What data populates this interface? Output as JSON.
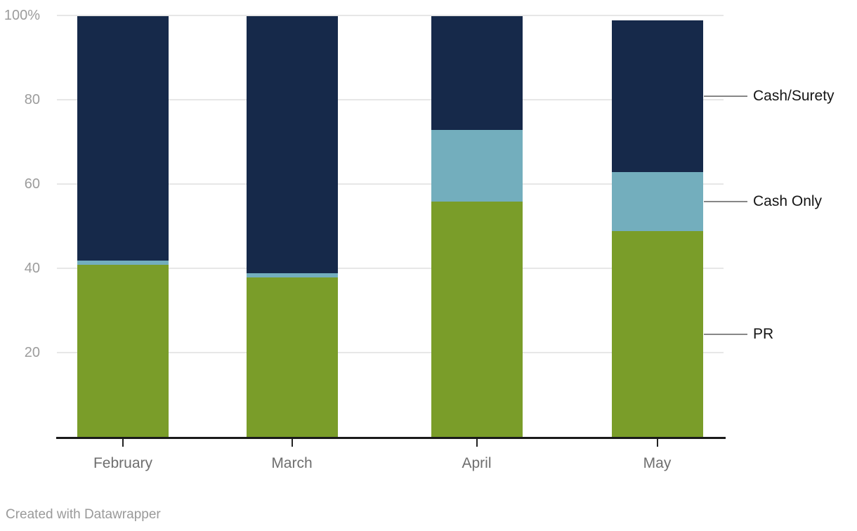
{
  "chart_data": {
    "type": "bar",
    "stacked": true,
    "orientation": "vertical",
    "unit": "%",
    "title": "",
    "categories": [
      "February",
      "March",
      "April",
      "May"
    ],
    "series": [
      {
        "name": "PR",
        "color": "#7a9d29",
        "values": [
          41,
          38,
          56,
          49
        ]
      },
      {
        "name": "Cash Only",
        "color": "#73aebd",
        "values": [
          1,
          1,
          17,
          14
        ]
      },
      {
        "name": "Cash/Surety",
        "color": "#16294a",
        "values": [
          58,
          61,
          27,
          36
        ]
      }
    ],
    "totals": [
      100,
      100,
      100,
      99
    ],
    "yaxis": {
      "ylim": [
        0,
        100
      ],
      "grid": true,
      "ticks": [
        {
          "value": 100,
          "label": "100%"
        },
        {
          "value": 80,
          "label": "80"
        },
        {
          "value": 60,
          "label": "60"
        },
        {
          "value": 40,
          "label": "40"
        },
        {
          "value": 20,
          "label": "20"
        }
      ]
    },
    "legend": {
      "position": "right",
      "style": "direct-labels-on-last-bar"
    }
  },
  "footer": {
    "credit": "Created with Datawrapper"
  },
  "colors": {
    "background": "#ffffff",
    "grid": "#e7e7e7",
    "axis_line": "#1a1a1a",
    "tick_mark": "#222222",
    "y_tick_label": "#9c9c9c",
    "x_tick_label": "#6e6e6e",
    "direct_label_text": "#151515",
    "connector_line": "#878787",
    "credit_text": "#9a9a9a"
  }
}
